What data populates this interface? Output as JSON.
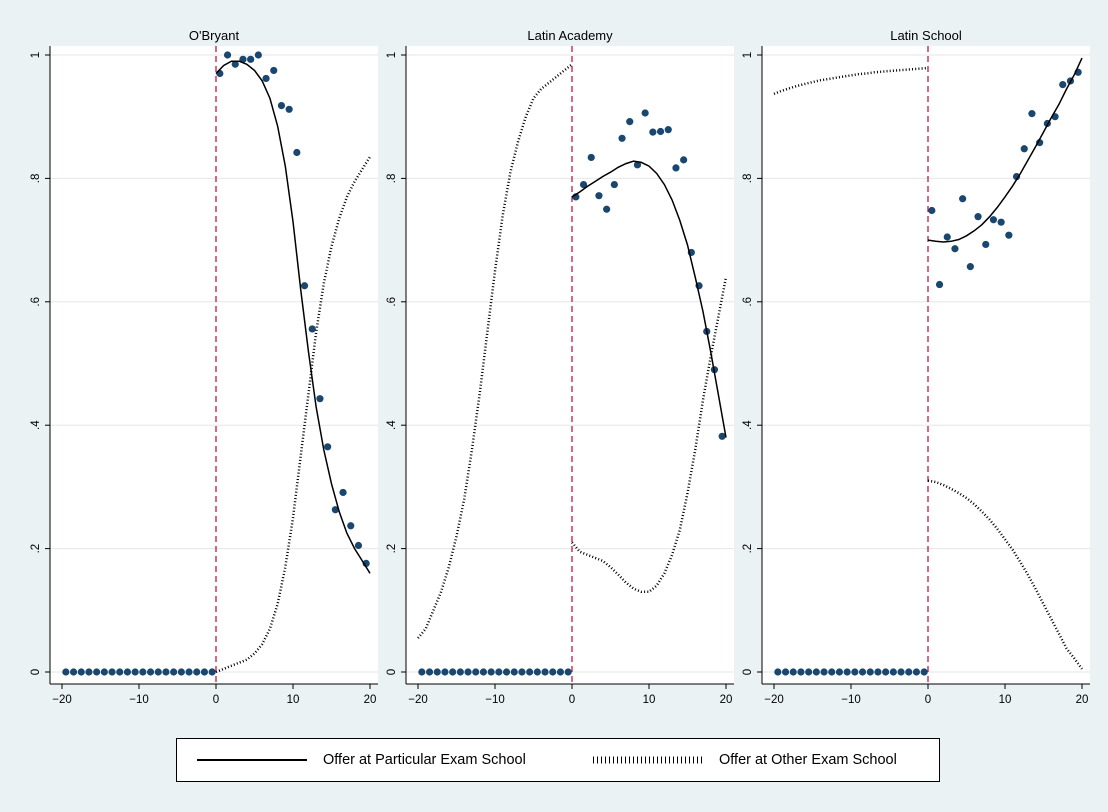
{
  "chart_data": [
    {
      "type": "scatter",
      "title": "O'Bryant",
      "xlim": [
        -20,
        20
      ],
      "ylim": [
        0,
        1
      ],
      "xticks": [
        -20,
        -10,
        0,
        10,
        20
      ],
      "yticks": [
        0,
        0.2,
        0.4,
        0.6,
        0.8,
        1
      ],
      "ytick_labels": [
        "0",
        ".2",
        ".4",
        ".6",
        ".8",
        "1"
      ],
      "cutoff": 0,
      "grid": "horizontal",
      "series": [
        {
          "name": "points",
          "style": "dots",
          "color": "#1a476f",
          "x": [
            -19.5,
            -18.5,
            -17.5,
            -16.5,
            -15.5,
            -14.5,
            -13.5,
            -12.5,
            -11.5,
            -10.5,
            -9.5,
            -8.5,
            -7.5,
            -6.5,
            -5.5,
            -4.5,
            -3.5,
            -2.5,
            -1.5,
            -0.5,
            0.5,
            1.5,
            2.5,
            3.5,
            4.5,
            5.5,
            6.5,
            7.5,
            8.5,
            9.5,
            10.5,
            11.5,
            12.5,
            13.5,
            14.5,
            15.5,
            16.5,
            17.5,
            18.5,
            19.5
          ],
          "y": [
            0,
            0,
            0,
            0,
            0,
            0,
            0,
            0,
            0,
            0,
            0,
            0,
            0,
            0,
            0,
            0,
            0,
            0,
            0,
            0,
            0.97,
            1.0,
            0.985,
            0.993,
            0.993,
            1.0,
            0.962,
            0.975,
            0.918,
            0.912,
            0.842,
            0.626,
            0.556,
            0.443,
            0.365,
            0.263,
            0.291,
            0.237,
            0.205,
            0.176
          ]
        },
        {
          "name": "Offer at Particular Exam School",
          "style": "solid",
          "color": "#000000",
          "x": [
            0,
            1,
            2,
            3,
            4,
            5,
            6,
            7,
            8,
            9,
            10,
            11,
            12,
            13,
            14,
            15,
            16,
            17,
            18,
            19,
            20
          ],
          "y": [
            0.97,
            0.983,
            0.99,
            0.99,
            0.985,
            0.975,
            0.958,
            0.93,
            0.885,
            0.82,
            0.73,
            0.62,
            0.52,
            0.43,
            0.36,
            0.305,
            0.26,
            0.225,
            0.2,
            0.18,
            0.16
          ]
        },
        {
          "name": "Offer at Other Exam School",
          "style": "dotted",
          "color": "#000000",
          "x": [
            0,
            1,
            2,
            3,
            4,
            5,
            6,
            7,
            8,
            9,
            10,
            11,
            12,
            13,
            14,
            15,
            16,
            17,
            18,
            19,
            20
          ],
          "y": [
            0.0,
            0.005,
            0.01,
            0.015,
            0.02,
            0.03,
            0.045,
            0.07,
            0.11,
            0.17,
            0.25,
            0.35,
            0.45,
            0.55,
            0.63,
            0.69,
            0.735,
            0.77,
            0.795,
            0.815,
            0.835
          ]
        }
      ]
    },
    {
      "type": "scatter",
      "title": "Latin Academy",
      "xlim": [
        -20,
        20
      ],
      "ylim": [
        0,
        1
      ],
      "xticks": [
        -20,
        -10,
        0,
        10,
        20
      ],
      "yticks": [
        0,
        0.2,
        0.4,
        0.6,
        0.8,
        1
      ],
      "ytick_labels": [
        "0",
        ".2",
        ".4",
        ".6",
        ".8",
        "1"
      ],
      "cutoff": 0,
      "grid": "horizontal",
      "series": [
        {
          "name": "points",
          "style": "dots",
          "color": "#1a476f",
          "x": [
            -19.5,
            -18.5,
            -17.5,
            -16.5,
            -15.5,
            -14.5,
            -13.5,
            -12.5,
            -11.5,
            -10.5,
            -9.5,
            -8.5,
            -7.5,
            -6.5,
            -5.5,
            -4.5,
            -3.5,
            -2.5,
            -1.5,
            -0.5,
            0.5,
            1.5,
            2.5,
            3.5,
            4.5,
            5.5,
            6.5,
            7.5,
            8.5,
            9.5,
            10.5,
            11.5,
            12.5,
            13.5,
            14.5,
            15.5,
            16.5,
            17.5,
            18.5,
            19.5
          ],
          "y": [
            0,
            0,
            0,
            0,
            0,
            0,
            0,
            0,
            0,
            0,
            0,
            0,
            0,
            0,
            0,
            0,
            0,
            0,
            0,
            0,
            0.77,
            0.79,
            0.834,
            0.772,
            0.75,
            0.79,
            0.865,
            0.892,
            0.822,
            0.906,
            0.875,
            0.876,
            0.879,
            0.817,
            0.83,
            0.68,
            0.626,
            0.552,
            0.49,
            0.382
          ]
        },
        {
          "name": "Offer at Particular Exam School",
          "style": "solid",
          "color": "#000000",
          "x": [
            0,
            1,
            2,
            3,
            4,
            5,
            6,
            7,
            8,
            9,
            10,
            11,
            12,
            13,
            14,
            15,
            16,
            17,
            18,
            19,
            20
          ],
          "y": [
            0.77,
            0.778,
            0.787,
            0.795,
            0.803,
            0.81,
            0.818,
            0.824,
            0.828,
            0.826,
            0.82,
            0.808,
            0.79,
            0.765,
            0.732,
            0.692,
            0.64,
            0.585,
            0.52,
            0.45,
            0.38
          ]
        },
        {
          "name": "Offer at Other Exam School",
          "style": "dotted",
          "color": "#000000",
          "x": [
            -20,
            -19,
            -18,
            -17,
            -16,
            -15,
            -14,
            -13,
            -12,
            -11,
            -10,
            -9,
            -8,
            -7,
            -6,
            -5,
            -4,
            -3,
            -2,
            -1,
            0,
            0.001,
            1,
            2,
            3,
            4,
            5,
            6,
            7,
            8,
            9,
            10,
            11,
            12,
            13,
            14,
            15,
            16,
            17,
            18,
            19,
            20
          ],
          "y": [
            0.055,
            0.07,
            0.1,
            0.13,
            0.17,
            0.22,
            0.28,
            0.36,
            0.45,
            0.55,
            0.65,
            0.74,
            0.81,
            0.86,
            0.9,
            0.93,
            0.945,
            0.955,
            0.965,
            0.975,
            0.985,
            0.21,
            0.195,
            0.19,
            0.185,
            0.18,
            0.17,
            0.158,
            0.145,
            0.135,
            0.13,
            0.13,
            0.14,
            0.16,
            0.19,
            0.23,
            0.29,
            0.36,
            0.44,
            0.51,
            0.575,
            0.64
          ]
        }
      ]
    },
    {
      "type": "scatter",
      "title": "Latin School",
      "xlim": [
        -20,
        20
      ],
      "ylim": [
        0,
        1
      ],
      "xticks": [
        -20,
        -10,
        0,
        10,
        20
      ],
      "yticks": [
        0,
        0.2,
        0.4,
        0.6,
        0.8,
        1
      ],
      "ytick_labels": [
        "0",
        ".2",
        ".4",
        ".6",
        ".8",
        "1"
      ],
      "cutoff": 0,
      "grid": "horizontal",
      "series": [
        {
          "name": "points",
          "style": "dots",
          "color": "#1a476f",
          "x": [
            -19.5,
            -18.5,
            -17.5,
            -16.5,
            -15.5,
            -14.5,
            -13.5,
            -12.5,
            -11.5,
            -10.5,
            -9.5,
            -8.5,
            -7.5,
            -6.5,
            -5.5,
            -4.5,
            -3.5,
            -2.5,
            -1.5,
            -0.5,
            0.5,
            1.5,
            2.5,
            3.5,
            4.5,
            5.5,
            6.5,
            7.5,
            8.5,
            9.5,
            10.5,
            11.5,
            12.5,
            13.5,
            14.5,
            15.5,
            16.5,
            17.5,
            18.5,
            19.5
          ],
          "y": [
            0,
            0,
            0,
            0,
            0,
            0,
            0,
            0,
            0,
            0,
            0,
            0,
            0,
            0,
            0,
            0,
            0,
            0,
            0,
            0,
            0.748,
            0.628,
            0.705,
            0.686,
            0.767,
            0.657,
            0.738,
            0.693,
            0.733,
            0.729,
            0.708,
            0.803,
            0.848,
            0.905,
            0.858,
            0.889,
            0.9,
            0.952,
            0.958,
            0.972
          ]
        },
        {
          "name": "Offer at Particular Exam School",
          "style": "solid",
          "color": "#000000",
          "x": [
            0,
            1,
            2,
            3,
            4,
            5,
            6,
            7,
            8,
            9,
            10,
            11,
            12,
            13,
            14,
            15,
            16,
            17,
            18,
            19,
            20
          ],
          "y": [
            0.7,
            0.698,
            0.697,
            0.698,
            0.701,
            0.707,
            0.715,
            0.725,
            0.738,
            0.753,
            0.77,
            0.788,
            0.808,
            0.83,
            0.852,
            0.875,
            0.898,
            0.92,
            0.945,
            0.968,
            0.995
          ]
        },
        {
          "name": "Offer at Other Exam School",
          "style": "dotted",
          "color": "#000000",
          "x": [
            -20,
            -19,
            -18,
            -17,
            -16,
            -15,
            -14,
            -13,
            -12,
            -11,
            -10,
            -9,
            -8,
            -7,
            -6,
            -5,
            -4,
            -3,
            -2,
            -1,
            0,
            0.001,
            1,
            2,
            3,
            4,
            5,
            6,
            7,
            8,
            9,
            10,
            11,
            12,
            13,
            14,
            15,
            16,
            17,
            18,
            19,
            20
          ],
          "y": [
            0.937,
            0.942,
            0.946,
            0.95,
            0.953,
            0.956,
            0.959,
            0.961,
            0.963,
            0.965,
            0.967,
            0.969,
            0.97,
            0.972,
            0.973,
            0.974,
            0.975,
            0.976,
            0.977,
            0.978,
            0.979,
            0.31,
            0.308,
            0.303,
            0.297,
            0.29,
            0.282,
            0.272,
            0.26,
            0.247,
            0.232,
            0.215,
            0.198,
            0.178,
            0.157,
            0.134,
            0.11,
            0.086,
            0.062,
            0.038,
            0.022,
            0.005
          ]
        }
      ]
    }
  ],
  "legend": {
    "placement": "bottom",
    "items": [
      {
        "label": "Offer at Particular Exam School",
        "style": "solid"
      },
      {
        "label": "Offer at Other Exam School",
        "style": "dotted"
      }
    ]
  },
  "colors": {
    "background": "#eaf2f3",
    "plot_background": "#ffffff",
    "points": "#1a476f",
    "cutoff_line": "#c10534",
    "grid": "#e6e6e6"
  }
}
